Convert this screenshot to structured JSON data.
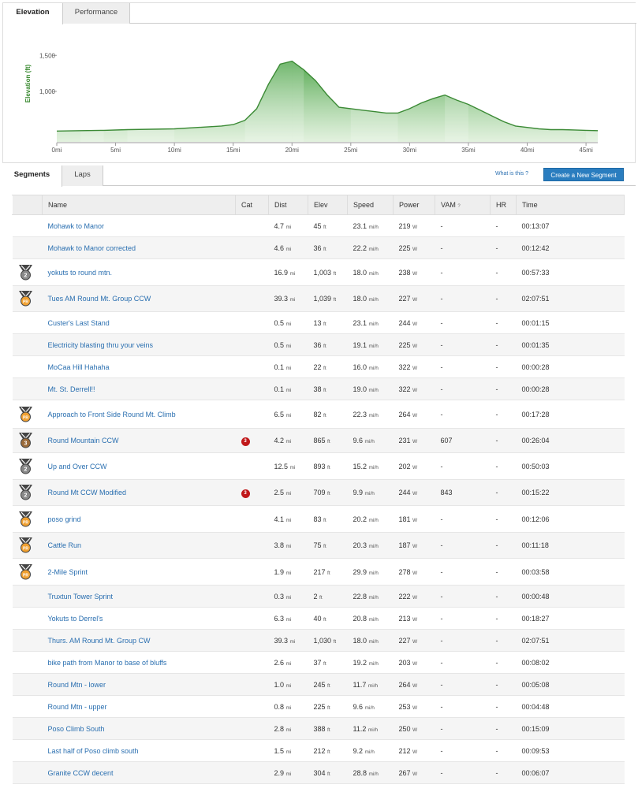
{
  "elevation_tabs": [
    "Elevation",
    "Performance"
  ],
  "chart_data": {
    "type": "area",
    "ylabel": "Elevation (ft)",
    "y_ticks": [
      "1,500",
      "1,000"
    ],
    "x_ticks": [
      "0mi",
      "5mi",
      "10mi",
      "15mi",
      "20mi",
      "25mi",
      "30mi",
      "35mi",
      "40mi",
      "45mi"
    ],
    "xlim": [
      0,
      46
    ],
    "ylim": [
      300,
      1700
    ],
    "x": [
      0,
      2,
      4,
      6,
      8,
      10,
      12,
      14,
      15,
      16,
      17,
      18,
      19,
      20,
      21,
      22,
      23,
      24,
      25,
      26,
      27,
      28,
      29,
      30,
      31,
      32,
      33,
      34,
      35,
      36,
      37,
      38,
      39,
      40,
      41,
      42,
      43,
      44,
      45,
      46
    ],
    "y": [
      450,
      455,
      460,
      470,
      475,
      480,
      500,
      520,
      540,
      600,
      760,
      1100,
      1380,
      1420,
      1300,
      1150,
      950,
      780,
      760,
      740,
      720,
      700,
      700,
      760,
      840,
      900,
      950,
      880,
      820,
      740,
      660,
      580,
      520,
      500,
      480,
      470,
      470,
      465,
      460,
      455
    ]
  },
  "segments_tabs": [
    "Segments",
    "Laps"
  ],
  "whatis_label": "What is this ?",
  "create_button": "Create a New Segment",
  "columns": [
    "Name",
    "Cat",
    "Dist",
    "Elev",
    "Speed",
    "Power",
    "VAM",
    "?",
    "HR",
    "Time"
  ],
  "rows": [
    {
      "medal": "",
      "name": "Mohawk to Manor",
      "cat": "",
      "dist": "4.7",
      "dist_unit": "mi",
      "elev": "45",
      "elev_unit": "ft",
      "speed": "23.1",
      "speed_unit": "mi/h",
      "power": "219",
      "power_unit": "W",
      "vam": "-",
      "hr": "-",
      "time": "00:13:07"
    },
    {
      "medal": "",
      "name": "Mohawk to Manor corrected",
      "cat": "",
      "dist": "4.6",
      "dist_unit": "mi",
      "elev": "36",
      "elev_unit": "ft",
      "speed": "22.2",
      "speed_unit": "mi/h",
      "power": "225",
      "power_unit": "W",
      "vam": "-",
      "hr": "-",
      "time": "00:12:42"
    },
    {
      "medal": "2",
      "name": "yokuts to round mtn.",
      "cat": "",
      "dist": "16.9",
      "dist_unit": "mi",
      "elev": "1,003",
      "elev_unit": "ft",
      "speed": "18.0",
      "speed_unit": "mi/h",
      "power": "238",
      "power_unit": "W",
      "vam": "-",
      "hr": "-",
      "time": "00:57:33"
    },
    {
      "medal": "PR",
      "name": "Tues AM Round Mt. Group CCW",
      "cat": "",
      "dist": "39.3",
      "dist_unit": "mi",
      "elev": "1,039",
      "elev_unit": "ft",
      "speed": "18.0",
      "speed_unit": "mi/h",
      "power": "227",
      "power_unit": "W",
      "vam": "-",
      "hr": "-",
      "time": "02:07:51"
    },
    {
      "medal": "",
      "name": "Custer's Last Stand",
      "cat": "",
      "dist": "0.5",
      "dist_unit": "mi",
      "elev": "13",
      "elev_unit": "ft",
      "speed": "23.1",
      "speed_unit": "mi/h",
      "power": "244",
      "power_unit": "W",
      "vam": "-",
      "hr": "-",
      "time": "00:01:15"
    },
    {
      "medal": "",
      "name": "Electricity blasting thru your veins",
      "cat": "",
      "dist": "0.5",
      "dist_unit": "mi",
      "elev": "36",
      "elev_unit": "ft",
      "speed": "19.1",
      "speed_unit": "mi/h",
      "power": "225",
      "power_unit": "W",
      "vam": "-",
      "hr": "-",
      "time": "00:01:35"
    },
    {
      "medal": "",
      "name": "MoCaa Hill Hahaha",
      "cat": "",
      "dist": "0.1",
      "dist_unit": "mi",
      "elev": "22",
      "elev_unit": "ft",
      "speed": "16.0",
      "speed_unit": "mi/h",
      "power": "322",
      "power_unit": "W",
      "vam": "-",
      "hr": "-",
      "time": "00:00:28"
    },
    {
      "medal": "",
      "name": "Mt. St. Derrell!!",
      "cat": "",
      "dist": "0.1",
      "dist_unit": "mi",
      "elev": "38",
      "elev_unit": "ft",
      "speed": "19.0",
      "speed_unit": "mi/h",
      "power": "322",
      "power_unit": "W",
      "vam": "-",
      "hr": "-",
      "time": "00:00:28"
    },
    {
      "medal": "PR",
      "name": "Approach to Front Side Round Mt. Climb",
      "cat": "",
      "dist": "6.5",
      "dist_unit": "mi",
      "elev": "82",
      "elev_unit": "ft",
      "speed": "22.3",
      "speed_unit": "mi/h",
      "power": "264",
      "power_unit": "W",
      "vam": "-",
      "hr": "-",
      "time": "00:17:28"
    },
    {
      "medal": "3",
      "name": "Round Mountain CCW",
      "cat": "3",
      "dist": "4.2",
      "dist_unit": "mi",
      "elev": "865",
      "elev_unit": "ft",
      "speed": "9.6",
      "speed_unit": "mi/h",
      "power": "231",
      "power_unit": "W",
      "vam": "607",
      "hr": "-",
      "time": "00:26:04"
    },
    {
      "medal": "2",
      "name": "Up and Over CCW",
      "cat": "",
      "dist": "12.5",
      "dist_unit": "mi",
      "elev": "893",
      "elev_unit": "ft",
      "speed": "15.2",
      "speed_unit": "mi/h",
      "power": "202",
      "power_unit": "W",
      "vam": "-",
      "hr": "-",
      "time": "00:50:03"
    },
    {
      "medal": "2",
      "name": "Round Mt CCW Modified",
      "cat": "3",
      "dist": "2.5",
      "dist_unit": "mi",
      "elev": "709",
      "elev_unit": "ft",
      "speed": "9.9",
      "speed_unit": "mi/h",
      "power": "244",
      "power_unit": "W",
      "vam": "843",
      "hr": "-",
      "time": "00:15:22"
    },
    {
      "medal": "PR",
      "name": "poso grind",
      "cat": "",
      "dist": "4.1",
      "dist_unit": "mi",
      "elev": "83",
      "elev_unit": "ft",
      "speed": "20.2",
      "speed_unit": "mi/h",
      "power": "181",
      "power_unit": "W",
      "vam": "-",
      "hr": "-",
      "time": "00:12:06"
    },
    {
      "medal": "PR",
      "name": "Cattle Run",
      "cat": "",
      "dist": "3.8",
      "dist_unit": "mi",
      "elev": "75",
      "elev_unit": "ft",
      "speed": "20.3",
      "speed_unit": "mi/h",
      "power": "187",
      "power_unit": "W",
      "vam": "-",
      "hr": "-",
      "time": "00:11:18"
    },
    {
      "medal": "PR",
      "name": "2-Mile Sprint",
      "cat": "",
      "dist": "1.9",
      "dist_unit": "mi",
      "elev": "217",
      "elev_unit": "ft",
      "speed": "29.9",
      "speed_unit": "mi/h",
      "power": "278",
      "power_unit": "W",
      "vam": "-",
      "hr": "-",
      "time": "00:03:58"
    },
    {
      "medal": "",
      "name": "Truxtun Tower Sprint",
      "cat": "",
      "dist": "0.3",
      "dist_unit": "mi",
      "elev": "2",
      "elev_unit": "ft",
      "speed": "22.8",
      "speed_unit": "mi/h",
      "power": "222",
      "power_unit": "W",
      "vam": "-",
      "hr": "-",
      "time": "00:00:48"
    },
    {
      "medal": "",
      "name": "Yokuts to Derrel's",
      "cat": "",
      "dist": "6.3",
      "dist_unit": "mi",
      "elev": "40",
      "elev_unit": "ft",
      "speed": "20.8",
      "speed_unit": "mi/h",
      "power": "213",
      "power_unit": "W",
      "vam": "-",
      "hr": "-",
      "time": "00:18:27"
    },
    {
      "medal": "",
      "name": "Thurs. AM Round Mt. Group CW",
      "cat": "",
      "dist": "39.3",
      "dist_unit": "mi",
      "elev": "1,030",
      "elev_unit": "ft",
      "speed": "18.0",
      "speed_unit": "mi/h",
      "power": "227",
      "power_unit": "W",
      "vam": "-",
      "hr": "-",
      "time": "02:07:51"
    },
    {
      "medal": "",
      "name": "bike path from Manor to base of bluffs",
      "cat": "",
      "dist": "2.6",
      "dist_unit": "mi",
      "elev": "37",
      "elev_unit": "ft",
      "speed": "19.2",
      "speed_unit": "mi/h",
      "power": "203",
      "power_unit": "W",
      "vam": "-",
      "hr": "-",
      "time": "00:08:02"
    },
    {
      "medal": "",
      "name": "Round Mtn - lower",
      "cat": "",
      "dist": "1.0",
      "dist_unit": "mi",
      "elev": "245",
      "elev_unit": "ft",
      "speed": "11.7",
      "speed_unit": "mi/h",
      "power": "264",
      "power_unit": "W",
      "vam": "-",
      "hr": "-",
      "time": "00:05:08"
    },
    {
      "medal": "",
      "name": "Round Mtn - upper",
      "cat": "",
      "dist": "0.8",
      "dist_unit": "mi",
      "elev": "225",
      "elev_unit": "ft",
      "speed": "9.6",
      "speed_unit": "mi/h",
      "power": "253",
      "power_unit": "W",
      "vam": "-",
      "hr": "-",
      "time": "00:04:48"
    },
    {
      "medal": "",
      "name": "Poso Climb South",
      "cat": "",
      "dist": "2.8",
      "dist_unit": "mi",
      "elev": "388",
      "elev_unit": "ft",
      "speed": "11.2",
      "speed_unit": "mi/h",
      "power": "250",
      "power_unit": "W",
      "vam": "-",
      "hr": "-",
      "time": "00:15:09"
    },
    {
      "medal": "",
      "name": "Last half of Poso climb south",
      "cat": "",
      "dist": "1.5",
      "dist_unit": "mi",
      "elev": "212",
      "elev_unit": "ft",
      "speed": "9.2",
      "speed_unit": "mi/h",
      "power": "212",
      "power_unit": "W",
      "vam": "-",
      "hr": "-",
      "time": "00:09:53"
    },
    {
      "medal": "",
      "name": "Granite CCW decent",
      "cat": "",
      "dist": "2.9",
      "dist_unit": "mi",
      "elev": "304",
      "elev_unit": "ft",
      "speed": "28.8",
      "speed_unit": "mi/h",
      "power": "267",
      "power_unit": "W",
      "vam": "-",
      "hr": "-",
      "time": "00:06:07"
    }
  ]
}
